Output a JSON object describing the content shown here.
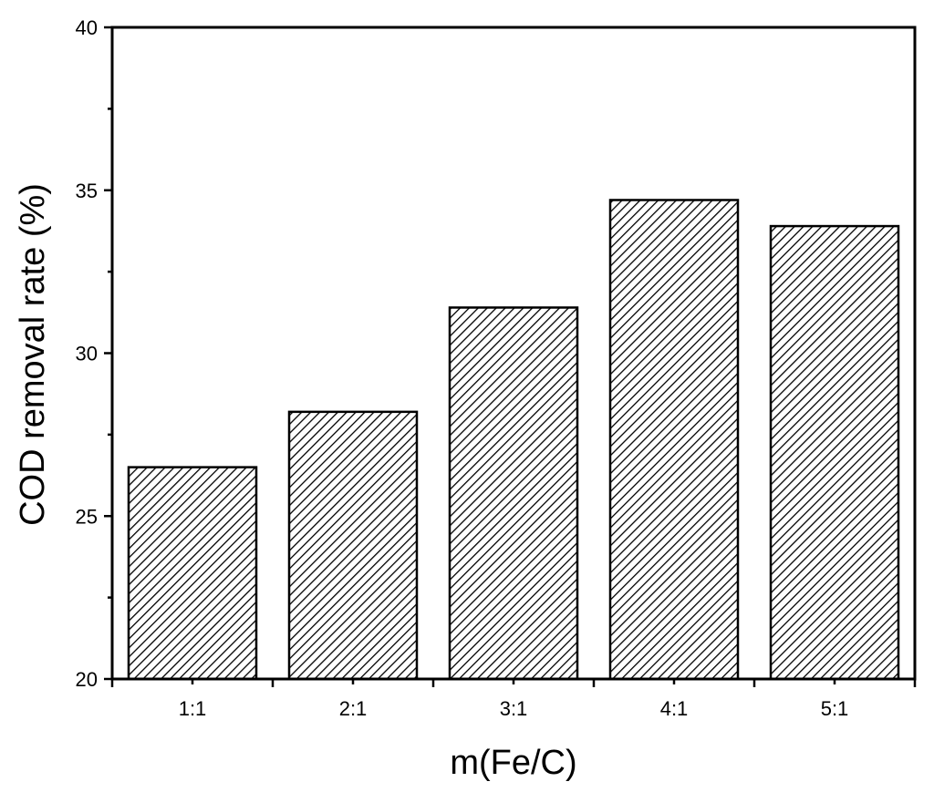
{
  "chart_data": {
    "type": "bar",
    "title": "",
    "xlabel": "m(Fe/C)",
    "ylabel": "COD removal rate (%)",
    "categories": [
      "1:1",
      "2:1",
      "3:1",
      "4:1",
      "5:1"
    ],
    "values": [
      26.5,
      28.2,
      31.4,
      34.7,
      33.9
    ],
    "ylim": [
      20,
      40
    ],
    "yticks": [
      20,
      25,
      30,
      35,
      40
    ],
    "grid": false,
    "legend": "none",
    "bar_fill": "diagonal hatch",
    "colors": {
      "axis": "#000000",
      "bar_edge": "#000000",
      "hatch": "#000000",
      "background": "#ffffff"
    }
  }
}
